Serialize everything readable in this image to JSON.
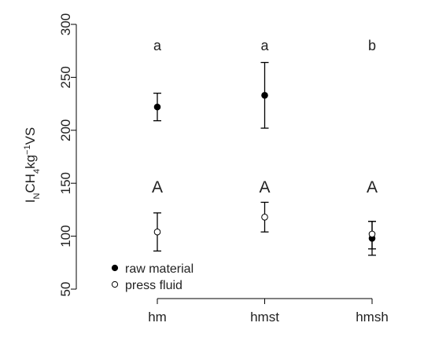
{
  "chart_data": {
    "type": "scatter",
    "categories": [
      "hm",
      "hmst",
      "hmsh"
    ],
    "ylabel": {
      "base": "I",
      "base_sub": "N",
      "mid": "CH",
      "mid_sub": "4",
      "unit": "kg",
      "unit_sup": "−1",
      "tail": "VS"
    },
    "ylim": [
      45,
      305
    ],
    "yticks": [
      50,
      100,
      150,
      200,
      250,
      300
    ],
    "series": [
      {
        "name": "raw material",
        "marker": "filled",
        "values": [
          222,
          233,
          98
        ],
        "err_low": [
          209,
          202,
          88
        ],
        "err_high": [
          235,
          264,
          114
        ],
        "letters": [
          "a",
          "a",
          "b"
        ],
        "letter_y": 280
      },
      {
        "name": "press fluid",
        "marker": "open",
        "values": [
          104,
          118,
          102
        ],
        "err_low": [
          86,
          104,
          82
        ],
        "err_high": [
          122,
          132,
          114
        ],
        "letters": [
          "A",
          "A",
          "A"
        ],
        "letter_y": 147
      }
    ],
    "legend_position": "bottom-left",
    "grid": false,
    "colors": {
      "marker": "#000000",
      "axis": "#000000",
      "text": "#222222"
    }
  }
}
